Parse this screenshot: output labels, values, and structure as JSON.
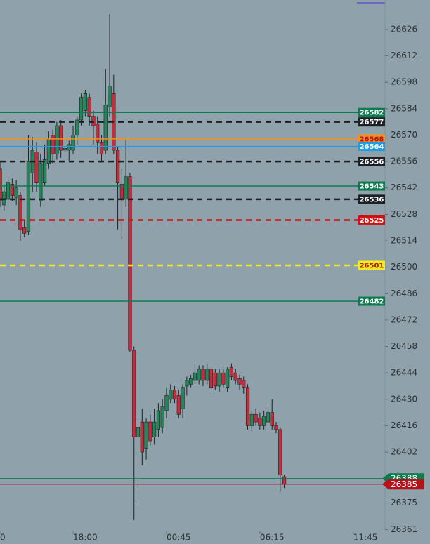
{
  "chart_data": {
    "type": "candlestick",
    "categories": [
      null,
      null,
      null,
      null,
      null,
      null,
      null,
      null,
      null,
      null,
      null,
      null,
      null,
      null,
      null,
      null,
      null,
      null,
      null,
      null,
      null,
      null,
      null,
      null,
      null,
      null,
      null,
      null,
      null,
      null,
      null,
      null,
      null,
      null,
      null,
      null,
      null,
      null,
      null,
      null,
      null,
      null,
      null,
      null,
      null,
      null,
      null,
      null,
      null,
      null,
      null,
      null,
      null,
      null,
      null,
      null,
      null,
      null,
      null,
      null,
      null,
      null,
      null,
      null,
      null,
      null,
      null,
      null,
      null,
      null,
      null
    ],
    "series": [
      {
        "up_color": "#27855a",
        "down_color": "#c72c3a",
        "open": [
          26552,
          26533,
          26536,
          26544,
          26537,
          26538,
          26521,
          26519,
          26550,
          26561,
          26535,
          26545,
          26555,
          26570,
          26560,
          26575,
          26562,
          26562,
          26562,
          26570,
          26578,
          26583,
          26590,
          26580,
          26576,
          26566,
          26562,
          26585,
          26592,
          26562,
          26544,
          26536,
          26548,
          26456,
          26410,
          26418,
          26404,
          26418,
          26410,
          26414,
          26415,
          26424,
          26430,
          26435,
          26432,
          26425,
          26437,
          26438,
          26440,
          26440,
          26446,
          26440,
          26446,
          26444,
          26437,
          26444,
          26436,
          26447,
          26444,
          26441,
          26440,
          26436,
          26416,
          26422,
          26420,
          26416,
          26418,
          26423,
          26416,
          26414,
          26389
        ],
        "high": [
          26556,
          26544,
          26548,
          26547,
          26546,
          26540,
          26525,
          26570,
          26569,
          26566,
          26560,
          26565,
          26572,
          26573,
          26577,
          26578,
          26566,
          26567,
          26575,
          26580,
          26592,
          26594,
          26592,
          26583,
          26580,
          26570,
          26605,
          26634,
          26602,
          26564,
          26552,
          26568,
          26550,
          26458,
          26420,
          26425,
          26420,
          26422,
          26425,
          26428,
          26430,
          26436,
          26438,
          26437,
          26435,
          26438,
          26442,
          26443,
          26449,
          26448,
          26448,
          26449,
          26448,
          26446,
          26446,
          26446,
          26447,
          26449,
          26446,
          26443,
          26442,
          26438,
          26424,
          26425,
          26423,
          26424,
          26426,
          26430,
          26418,
          26415,
          26390
        ],
        "low": [
          26532,
          26530,
          26533,
          26535,
          26533,
          26514,
          26516,
          26517,
          26540,
          26540,
          26532,
          26543,
          26552,
          26555,
          26557,
          26558,
          26556,
          26556,
          26560,
          26565,
          26575,
          26580,
          26575,
          26565,
          26560,
          26556,
          26560,
          26580,
          26560,
          26520,
          26515,
          26532,
          26455,
          26366,
          26375,
          26395,
          26398,
          26405,
          26406,
          26410,
          26412,
          26420,
          26428,
          26428,
          26420,
          26420,
          26432,
          26436,
          26438,
          26438,
          26437,
          26438,
          26433,
          26435,
          26434,
          26436,
          26434,
          26440,
          26438,
          26435,
          26433,
          26414,
          26413,
          26416,
          26414,
          26414,
          26415,
          26414,
          26412,
          26381,
          26383
        ],
        "close": [
          26535,
          26540,
          26545,
          26538,
          26542,
          26520,
          26518,
          26556,
          26562,
          26545,
          26555,
          26557,
          26568,
          26560,
          26575,
          26562,
          26563,
          26565,
          26570,
          26578,
          26590,
          26592,
          26580,
          26575,
          26566,
          26560,
          26586,
          26596,
          26562,
          26545,
          26536,
          26548,
          26456,
          26410,
          26415,
          26402,
          26418,
          26408,
          26418,
          26424,
          26426,
          26432,
          26435,
          26430,
          26422,
          26436,
          26440,
          26441,
          26444,
          26446,
          26440,
          26446,
          26436,
          26437,
          26444,
          26438,
          26446,
          26442,
          26440,
          26438,
          26436,
          26416,
          26422,
          26418,
          26416,
          26421,
          26423,
          26416,
          26414,
          26390,
          26385
        ]
      }
    ],
    "levels": [
      {
        "value": 26582,
        "color": "#0e7a4f",
        "style": "solid"
      },
      {
        "value": 26577,
        "color": "#1c1f24",
        "style": "dashed"
      },
      {
        "value": 26568,
        "color": "#f5901e",
        "style": "solid"
      },
      {
        "value": 26564,
        "color": "#1f9be6",
        "style": "solid"
      },
      {
        "value": 26556,
        "color": "#1c1f24",
        "style": "dashed"
      },
      {
        "value": 26543,
        "color": "#0e7a4f",
        "style": "solid"
      },
      {
        "value": 26536,
        "color": "#1c1f24",
        "style": "dashed"
      },
      {
        "value": 26525,
        "color": "#d01010",
        "style": "dashed"
      },
      {
        "value": 26501,
        "color": "#f2ec1e",
        "style": "dashed"
      },
      {
        "value": 26482,
        "color": "#0e7a4f",
        "style": "solid"
      }
    ],
    "price_labels": [
      {
        "value": 26388,
        "color": "#0e7a4f"
      },
      {
        "value": 26385,
        "color": "#b3141c"
      }
    ],
    "ylim": [
      26360,
      26641.6
    ],
    "yticks": [
      26626,
      26612,
      26598,
      26584,
      26570,
      26556,
      26542,
      26528,
      26514,
      26500,
      26486,
      26472,
      26458,
      26444,
      26430,
      26416,
      26402,
      26388,
      26375,
      26361
    ],
    "xlim": [
      0,
      94.3
    ],
    "xticks": [
      {
        "value": 0,
        "label": "0"
      },
      {
        "value": 18,
        "label": "18:00"
      },
      {
        "value": 41,
        "label": "00:45"
      },
      {
        "value": 64,
        "label": "06:15"
      },
      {
        "value": 87,
        "label": "11:45"
      }
    ]
  }
}
